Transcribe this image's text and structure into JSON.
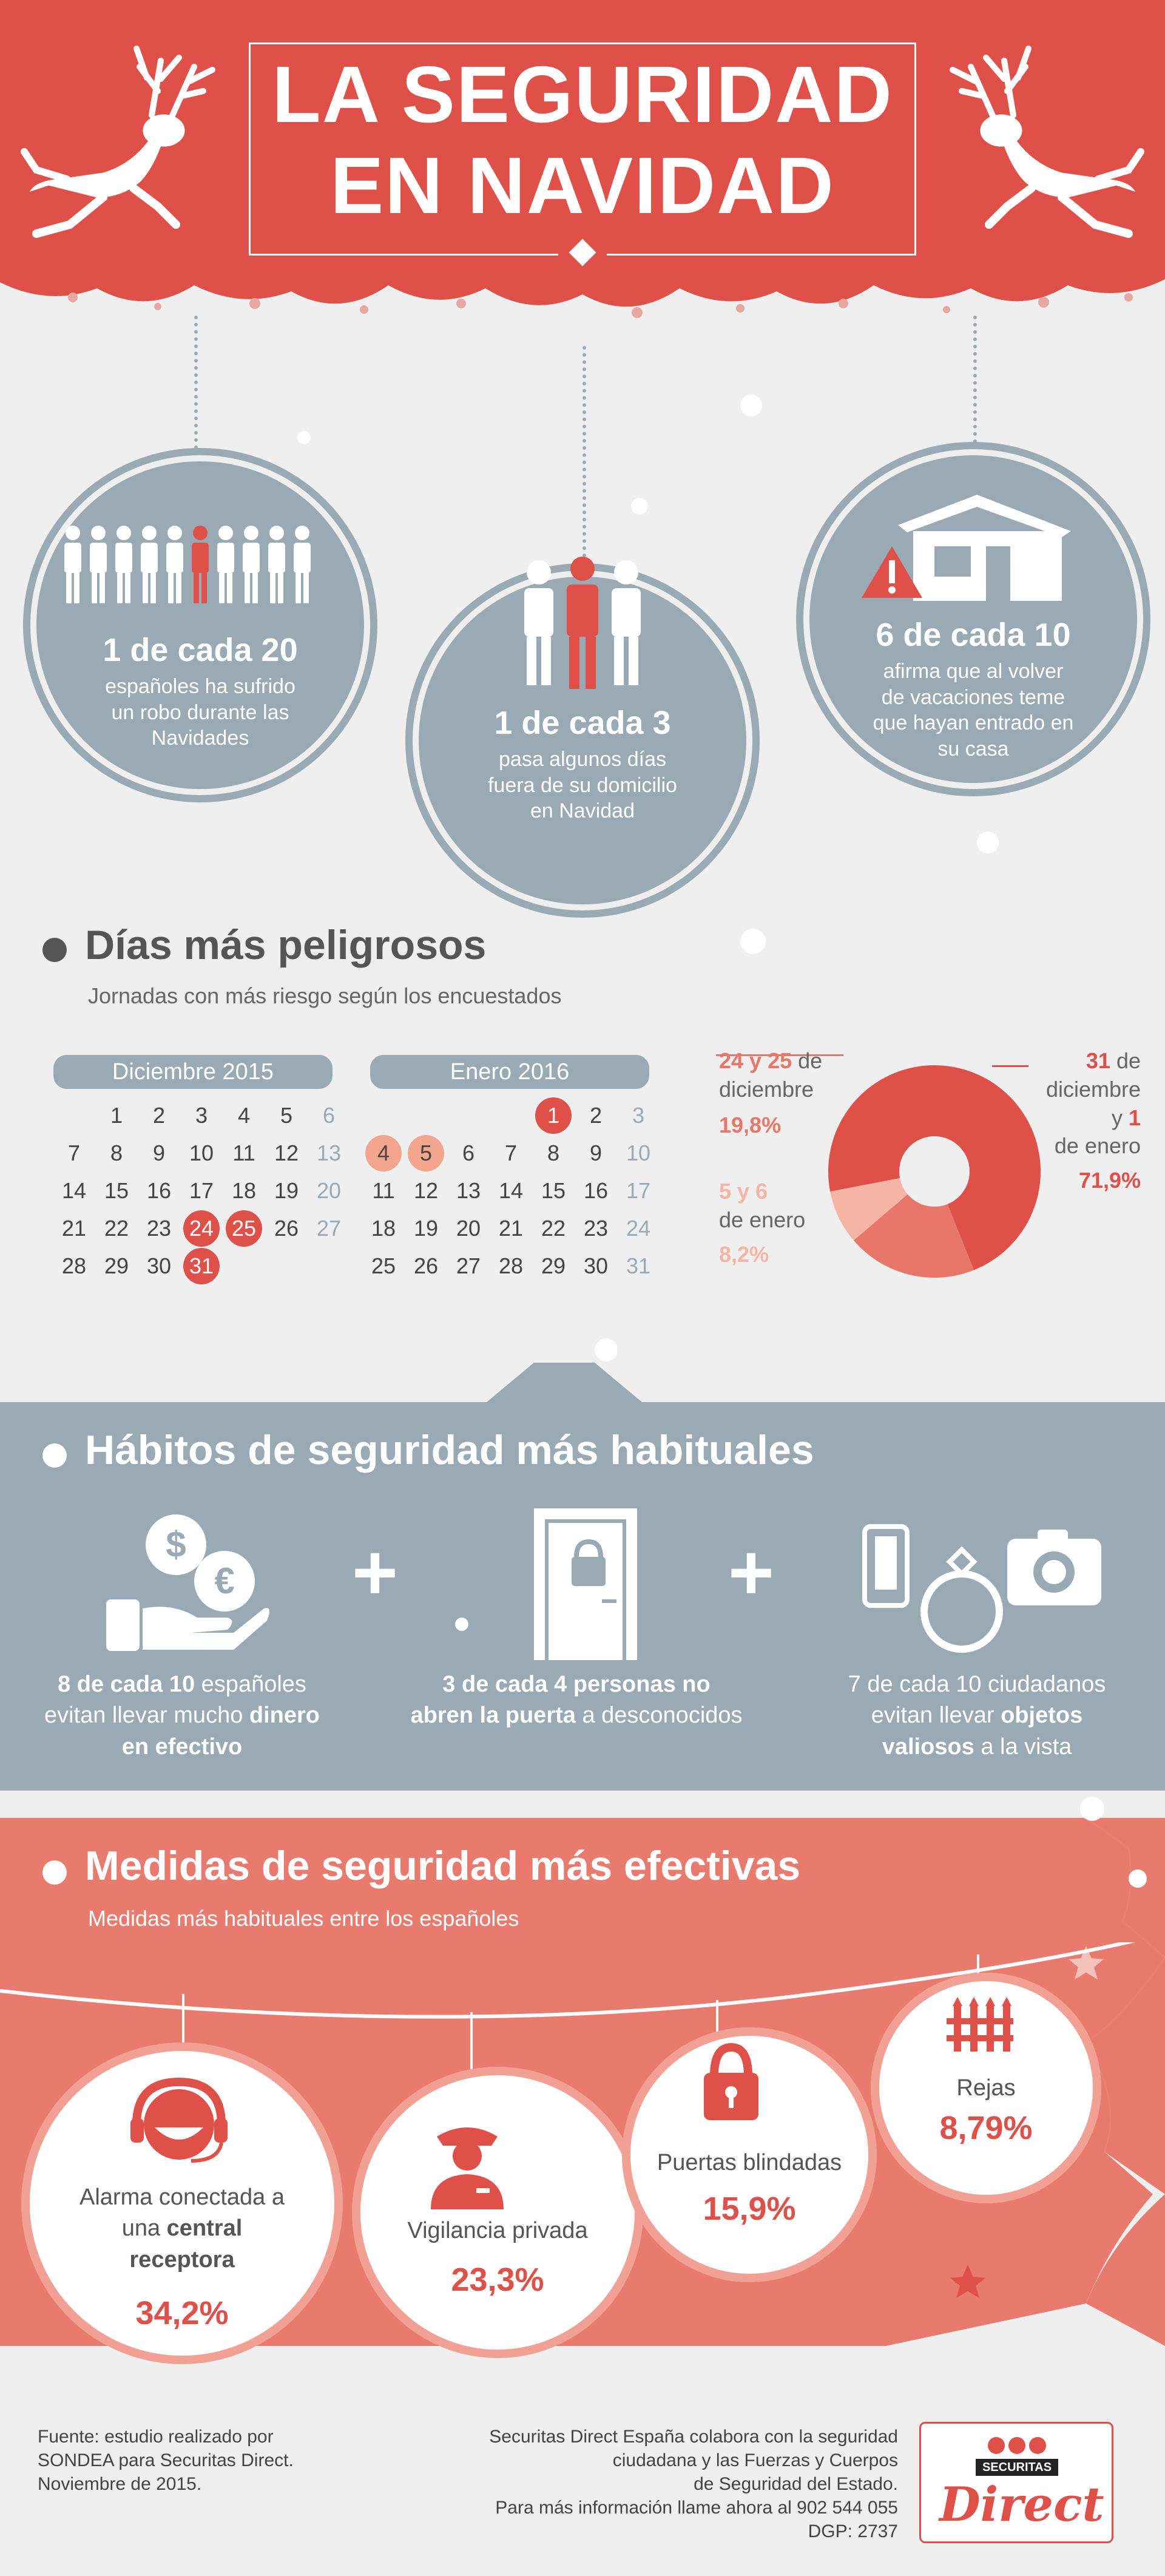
{
  "header": {
    "title_line1": "LA SEGURIDAD",
    "title_line2": "EN NAVIDAD"
  },
  "stats": [
    {
      "big": "1 de cada 20",
      "small": "españoles ha sufrido un robo durante las Navidades"
    },
    {
      "big": "1 de cada 3",
      "small": "pasa algunos días fuera de su domicilio en Navidad"
    },
    {
      "big": "6 de cada 10",
      "small": "afirma que al volver de vacaciones teme que hayan entrado en su casa"
    }
  ],
  "dangerous_days": {
    "title": "Días más peligrosos",
    "subtitle": "Jornadas con más riesgo según los encuestados",
    "calendar_dec": {
      "header": "Diciembre 2015",
      "rows": [
        [
          "",
          "1",
          "2",
          "3",
          "4",
          "5",
          "6"
        ],
        [
          "7",
          "8",
          "9",
          "10",
          "11",
          "12",
          "13"
        ],
        [
          "14",
          "15",
          "16",
          "17",
          "18",
          "19",
          "20"
        ],
        [
          "21",
          "22",
          "23",
          "24",
          "25",
          "26",
          "27"
        ],
        [
          "28",
          "29",
          "30",
          "31",
          "",
          "",
          ""
        ]
      ]
    },
    "calendar_jan": {
      "header": "Enero 2016",
      "rows": [
        [
          "",
          "",
          "",
          "",
          "1",
          "2",
          "3"
        ],
        [
          "4",
          "5",
          "6",
          "7",
          "8",
          "9",
          "10"
        ],
        [
          "11",
          "12",
          "13",
          "14",
          "15",
          "16",
          "17"
        ],
        [
          "18",
          "19",
          "20",
          "21",
          "22",
          "23",
          "24"
        ],
        [
          "25",
          "26",
          "27",
          "28",
          "29",
          "30",
          "31"
        ]
      ]
    },
    "donut": {
      "label_a_days": "24 y 25",
      "label_a_rest": "de diciembre",
      "label_a_pct": "19,8%",
      "label_b_days": "5 y 6",
      "label_b_rest": "de enero",
      "label_b_pct": "8,2%",
      "label_c_days1": "31",
      "label_c_rest1": "de diciembre",
      "label_c_mid": "y",
      "label_c_days2": "1",
      "label_c_rest2": "de enero",
      "label_c_pct": "71,9%"
    }
  },
  "chart_data": {
    "type": "pie",
    "categories": [
      "31 de diciembre y 1 de enero",
      "24 y 25 de diciembre",
      "5 y 6 de enero"
    ],
    "values": [
      71.9,
      19.8,
      8.2
    ],
    "colors": [
      "#df5049",
      "#e8776a",
      "#f5b5a5"
    ]
  },
  "habits": {
    "title": "Hábitos de seguridad más habituales",
    "h1_a": "8 de cada 10",
    "h1_b": "españoles",
    "h1_c": "evitan llevar mucho",
    "h1_d": "dinero",
    "h1_e": "en efectivo",
    "h2_a": "3 de cada 4 personas no",
    "h2_b": "abren la puerta",
    "h2_c": "a desconocidos",
    "h3_a": "7 de cada 10 ciudadanos",
    "h3_b": "evitan llevar",
    "h3_c": "objetos",
    "h3_d": "valiosos",
    "h3_e": "a la vista"
  },
  "measures": {
    "title": "Medidas de seguridad más efectivas",
    "subtitle": "Medidas más habituales entre los españoles",
    "m1_a": "Alarma conectada a",
    "m1_b": "una",
    "m1_c": "central",
    "m1_d": "receptora",
    "m1_pct": "34,2%",
    "m2_label": "Vigilancia privada",
    "m2_pct": "23,3%",
    "m3_label": "Puertas blindadas",
    "m3_pct": "15,9%",
    "m4_label": "Rejas",
    "m4_pct": "8,79%"
  },
  "footer": {
    "source_1": "Fuente: estudio realizado por",
    "source_2": "SONDEA para Securitas Direct.",
    "source_3": "Noviembre de 2015.",
    "info_1": "Securitas Direct España colabora con la seguridad",
    "info_2": "ciudadana y las Fuerzas y Cuerpos",
    "info_3": "de Seguridad del Estado.",
    "info_4": "Para más información llame ahora al 902 544 055",
    "info_5": "DGP: 2737",
    "logo_word": "SECURITAS",
    "logo_script": "Direct"
  }
}
